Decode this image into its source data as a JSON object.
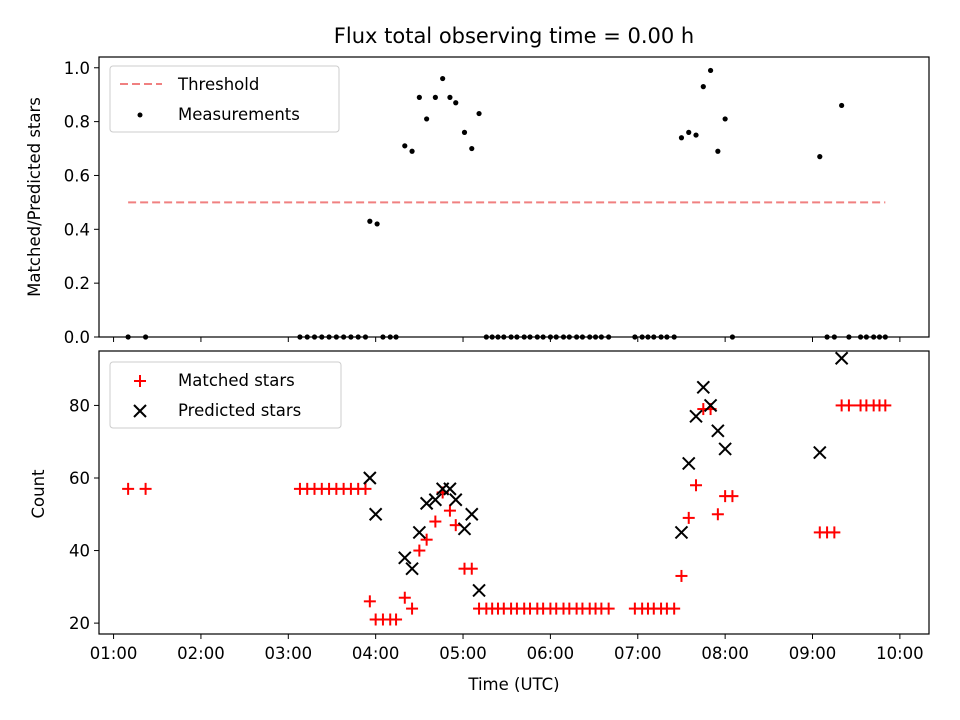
{
  "chart_data": [
    {
      "type": "scatter",
      "title": "Flux total observing time = 0.00 h",
      "ylabel": "Matched/Predicted stars",
      "xlim": [
        "00:50",
        "10:20"
      ],
      "ylim": [
        0,
        1.04
      ],
      "yticks": [
        "0.0",
        "0.2",
        "0.4",
        "0.6",
        "0.8",
        "1.0"
      ],
      "yticks_values": [
        0,
        0.2,
        0.4,
        0.6,
        0.8,
        1.0
      ],
      "legend_position": "upper left",
      "threshold": {
        "name": "Threshold",
        "value": 0.5,
        "x_start": "01:10",
        "x_end": "09:50",
        "color": "#f08080",
        "style": "dashed"
      },
      "series": [
        {
          "name": "Measurements",
          "marker": "dot",
          "color": "#000000",
          "points": [
            [
              "01:10",
              0
            ],
            [
              "01:22",
              0
            ],
            [
              "03:08",
              0
            ],
            [
              "03:13",
              0
            ],
            [
              "03:18",
              0
            ],
            [
              "03:23",
              0
            ],
            [
              "03:28",
              0
            ],
            [
              "03:33",
              0
            ],
            [
              "03:38",
              0
            ],
            [
              "03:43",
              0
            ],
            [
              "03:48",
              0
            ],
            [
              "03:53",
              0
            ],
            [
              "03:56",
              0.43
            ],
            [
              "04:01",
              0.42
            ],
            [
              "04:05",
              0
            ],
            [
              "04:10",
              0
            ],
            [
              "04:14",
              0
            ],
            [
              "04:20",
              0.71
            ],
            [
              "04:25",
              0.69
            ],
            [
              "04:30",
              0.89
            ],
            [
              "04:35",
              0.81
            ],
            [
              "04:41",
              0.89
            ],
            [
              "04:46",
              0.96
            ],
            [
              "04:51",
              0.89
            ],
            [
              "04:55",
              0.87
            ],
            [
              "05:01",
              0.76
            ],
            [
              "05:06",
              0.7
            ],
            [
              "05:11",
              0.83
            ],
            [
              "05:16",
              0
            ],
            [
              "05:20",
              0
            ],
            [
              "05:24",
              0
            ],
            [
              "05:28",
              0
            ],
            [
              "05:33",
              0
            ],
            [
              "05:37",
              0
            ],
            [
              "05:42",
              0
            ],
            [
              "05:46",
              0
            ],
            [
              "05:51",
              0
            ],
            [
              "05:55",
              0
            ],
            [
              "06:00",
              0
            ],
            [
              "06:04",
              0
            ],
            [
              "06:09",
              0
            ],
            [
              "06:13",
              0
            ],
            [
              "06:18",
              0
            ],
            [
              "06:22",
              0
            ],
            [
              "06:27",
              0
            ],
            [
              "06:31",
              0
            ],
            [
              "06:35",
              0
            ],
            [
              "06:40",
              0
            ],
            [
              "06:58",
              0
            ],
            [
              "07:03",
              0
            ],
            [
              "07:07",
              0
            ],
            [
              "07:11",
              0
            ],
            [
              "07:16",
              0
            ],
            [
              "07:20",
              0
            ],
            [
              "07:25",
              0
            ],
            [
              "07:30",
              0.74
            ],
            [
              "07:35",
              0.76
            ],
            [
              "07:40",
              0.75
            ],
            [
              "07:45",
              0.93
            ],
            [
              "07:50",
              0.99
            ],
            [
              "07:55",
              0.69
            ],
            [
              "08:00",
              0.81
            ],
            [
              "08:05",
              0
            ],
            [
              "09:05",
              0.67
            ],
            [
              "09:10",
              0
            ],
            [
              "09:15",
              0
            ],
            [
              "09:20",
              0.86
            ],
            [
              "09:25",
              0
            ],
            [
              "09:33",
              0
            ],
            [
              "09:37",
              0
            ],
            [
              "09:42",
              0
            ],
            [
              "09:46",
              0
            ],
            [
              "09:50",
              0
            ]
          ]
        }
      ]
    },
    {
      "type": "scatter",
      "xlabel": "Time (UTC)",
      "ylabel": "Count",
      "xlim": [
        "00:50",
        "10:20"
      ],
      "ylim": [
        17,
        95
      ],
      "xticks": [
        "01:00",
        "02:00",
        "03:00",
        "04:00",
        "05:00",
        "06:00",
        "07:00",
        "08:00",
        "09:00",
        "10:00"
      ],
      "yticks": [
        "20",
        "40",
        "60",
        "80"
      ],
      "yticks_values": [
        20,
        40,
        60,
        80
      ],
      "legend_position": "upper left",
      "series": [
        {
          "name": "Matched stars",
          "marker": "plus",
          "color": "#ff0000",
          "points": [
            [
              "01:10",
              57
            ],
            [
              "01:22",
              57
            ],
            [
              "03:08",
              57
            ],
            [
              "03:13",
              57
            ],
            [
              "03:18",
              57
            ],
            [
              "03:23",
              57
            ],
            [
              "03:28",
              57
            ],
            [
              "03:33",
              57
            ],
            [
              "03:38",
              57
            ],
            [
              "03:43",
              57
            ],
            [
              "03:48",
              57
            ],
            [
              "03:53",
              57
            ],
            [
              "03:56",
              26
            ],
            [
              "04:00",
              21
            ],
            [
              "04:05",
              21
            ],
            [
              "04:10",
              21
            ],
            [
              "04:14",
              21
            ],
            [
              "04:20",
              27
            ],
            [
              "04:25",
              24
            ],
            [
              "04:30",
              40
            ],
            [
              "04:35",
              43
            ],
            [
              "04:41",
              48
            ],
            [
              "04:46",
              56
            ],
            [
              "04:51",
              51
            ],
            [
              "04:55",
              47
            ],
            [
              "05:01",
              35
            ],
            [
              "05:06",
              35
            ],
            [
              "05:11",
              24
            ],
            [
              "05:16",
              24
            ],
            [
              "05:20",
              24
            ],
            [
              "05:24",
              24
            ],
            [
              "05:28",
              24
            ],
            [
              "05:33",
              24
            ],
            [
              "05:37",
              24
            ],
            [
              "05:42",
              24
            ],
            [
              "05:46",
              24
            ],
            [
              "05:51",
              24
            ],
            [
              "05:55",
              24
            ],
            [
              "06:00",
              24
            ],
            [
              "06:04",
              24
            ],
            [
              "06:09",
              24
            ],
            [
              "06:13",
              24
            ],
            [
              "06:18",
              24
            ],
            [
              "06:22",
              24
            ],
            [
              "06:27",
              24
            ],
            [
              "06:31",
              24
            ],
            [
              "06:35",
              24
            ],
            [
              "06:40",
              24
            ],
            [
              "06:58",
              24
            ],
            [
              "07:03",
              24
            ],
            [
              "07:07",
              24
            ],
            [
              "07:11",
              24
            ],
            [
              "07:16",
              24
            ],
            [
              "07:20",
              24
            ],
            [
              "07:25",
              24
            ],
            [
              "07:30",
              33
            ],
            [
              "07:35",
              49
            ],
            [
              "07:40",
              58
            ],
            [
              "07:45",
              79
            ],
            [
              "07:50",
              79
            ],
            [
              "07:55",
              50
            ],
            [
              "08:00",
              55
            ],
            [
              "08:05",
              55
            ],
            [
              "09:05",
              45
            ],
            [
              "09:10",
              45
            ],
            [
              "09:15",
              45
            ],
            [
              "09:20",
              80
            ],
            [
              "09:25",
              80
            ],
            [
              "09:33",
              80
            ],
            [
              "09:37",
              80
            ],
            [
              "09:42",
              80
            ],
            [
              "09:46",
              80
            ],
            [
              "09:50",
              80
            ]
          ]
        },
        {
          "name": "Predicted stars",
          "marker": "x",
          "color": "#000000",
          "points": [
            [
              "03:56",
              60
            ],
            [
              "04:00",
              50
            ],
            [
              "04:20",
              38
            ],
            [
              "04:25",
              35
            ],
            [
              "04:30",
              45
            ],
            [
              "04:35",
              53
            ],
            [
              "04:41",
              54
            ],
            [
              "04:46",
              57
            ],
            [
              "04:51",
              57
            ],
            [
              "04:55",
              54
            ],
            [
              "05:01",
              46
            ],
            [
              "05:06",
              50
            ],
            [
              "05:11",
              29
            ],
            [
              "07:30",
              45
            ],
            [
              "07:35",
              64
            ],
            [
              "07:40",
              77
            ],
            [
              "07:45",
              85
            ],
            [
              "07:50",
              80
            ],
            [
              "07:55",
              73
            ],
            [
              "08:00",
              68
            ],
            [
              "09:05",
              67
            ],
            [
              "09:20",
              93
            ]
          ]
        }
      ]
    }
  ]
}
